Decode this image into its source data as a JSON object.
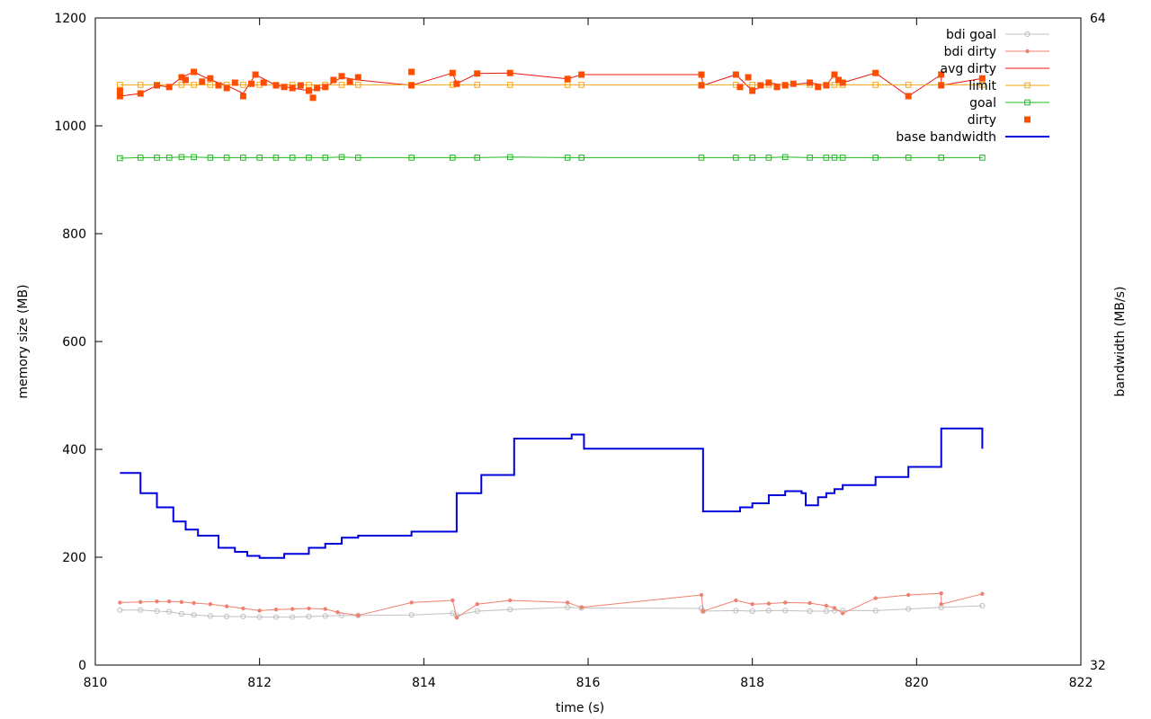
{
  "chart_data": {
    "type": "line",
    "title": "",
    "xlabel": "time (s)",
    "ylabel": "memory size (MB)",
    "y2label": "bandwidth (MB/s)",
    "xlim": [
      810,
      822
    ],
    "ylim": [
      0,
      1200
    ],
    "y2lim": [
      32,
      64
    ],
    "xticks": [
      "810",
      "812",
      "814",
      "816",
      "818",
      "820",
      "822"
    ],
    "yticks": [
      "0",
      "200",
      "400",
      "600",
      "800",
      "1000",
      "1200"
    ],
    "y2ticks": [
      "32",
      "64"
    ],
    "grid": false,
    "legend_position": "top-right",
    "series": [
      {
        "name": "bdi goal",
        "color": "#c0c0c0",
        "axis": "y",
        "style": "line-circle",
        "points": [
          [
            810.3,
            102
          ],
          [
            810.55,
            102
          ],
          [
            810.75,
            100
          ],
          [
            810.9,
            99
          ],
          [
            811.05,
            95
          ],
          [
            811.2,
            93
          ],
          [
            811.4,
            91
          ],
          [
            811.6,
            90
          ],
          [
            811.8,
            90
          ],
          [
            812.0,
            89
          ],
          [
            812.2,
            89
          ],
          [
            812.4,
            89
          ],
          [
            812.6,
            90
          ],
          [
            812.8,
            91
          ],
          [
            813.0,
            92
          ],
          [
            813.2,
            92
          ],
          [
            813.85,
            93
          ],
          [
            814.35,
            96
          ],
          [
            814.4,
            92
          ],
          [
            814.65,
            100
          ],
          [
            815.05,
            103
          ],
          [
            815.75,
            107
          ],
          [
            815.92,
            106
          ],
          [
            817.38,
            105
          ],
          [
            817.4,
            100
          ],
          [
            817.8,
            101
          ],
          [
            818.0,
            100
          ],
          [
            818.2,
            101
          ],
          [
            818.4,
            101
          ],
          [
            818.7,
            100
          ],
          [
            818.9,
            100
          ],
          [
            819.0,
            101
          ],
          [
            819.1,
            101
          ],
          [
            819.5,
            101
          ],
          [
            819.9,
            104
          ],
          [
            820.3,
            107
          ],
          [
            820.8,
            110
          ]
        ]
      },
      {
        "name": "bdi dirty",
        "color": "#f08070",
        "axis": "y",
        "style": "line-dot",
        "points": [
          [
            810.3,
            116
          ],
          [
            810.55,
            117
          ],
          [
            810.75,
            118
          ],
          [
            810.9,
            118
          ],
          [
            811.05,
            117
          ],
          [
            811.2,
            115
          ],
          [
            811.4,
            113
          ],
          [
            811.6,
            109
          ],
          [
            811.8,
            105
          ],
          [
            812.0,
            101
          ],
          [
            812.2,
            103
          ],
          [
            812.4,
            104
          ],
          [
            812.6,
            105
          ],
          [
            812.8,
            104
          ],
          [
            812.95,
            98
          ],
          [
            813.2,
            92
          ],
          [
            813.85,
            116
          ],
          [
            814.35,
            120
          ],
          [
            814.4,
            88
          ],
          [
            814.65,
            113
          ],
          [
            815.05,
            120
          ],
          [
            815.75,
            116
          ],
          [
            815.92,
            107
          ],
          [
            817.38,
            130
          ],
          [
            817.4,
            100
          ],
          [
            817.8,
            120
          ],
          [
            818.0,
            113
          ],
          [
            818.2,
            114
          ],
          [
            818.4,
            116
          ],
          [
            818.7,
            115
          ],
          [
            818.9,
            110
          ],
          [
            819.0,
            106
          ],
          [
            819.1,
            96
          ],
          [
            819.5,
            124
          ],
          [
            819.9,
            130
          ],
          [
            820.3,
            133
          ],
          [
            820.3,
            113
          ],
          [
            820.8,
            132
          ]
        ]
      },
      {
        "name": "avg dirty",
        "color": "#e8150e",
        "axis": "y",
        "style": "line",
        "points": [
          [
            810.3,
            1055
          ],
          [
            810.55,
            1060
          ],
          [
            810.75,
            1075
          ],
          [
            810.9,
            1072
          ],
          [
            811.05,
            1090
          ],
          [
            811.2,
            1100
          ],
          [
            811.4,
            1085
          ],
          [
            811.6,
            1075
          ],
          [
            811.8,
            1060
          ],
          [
            811.95,
            1095
          ],
          [
            812.2,
            1075
          ],
          [
            812.4,
            1070
          ],
          [
            812.6,
            1065
          ],
          [
            812.8,
            1072
          ],
          [
            813.0,
            1090
          ],
          [
            813.2,
            1085
          ],
          [
            813.85,
            1075
          ],
          [
            814.35,
            1098
          ],
          [
            814.4,
            1078
          ],
          [
            814.65,
            1097
          ],
          [
            815.05,
            1098
          ],
          [
            815.75,
            1087
          ],
          [
            815.92,
            1095
          ],
          [
            817.38,
            1095
          ],
          [
            817.4,
            1075
          ],
          [
            817.8,
            1095
          ],
          [
            818.0,
            1065
          ],
          [
            818.2,
            1080
          ],
          [
            818.4,
            1075
          ],
          [
            818.7,
            1080
          ],
          [
            818.9,
            1075
          ],
          [
            819.0,
            1095
          ],
          [
            819.1,
            1080
          ],
          [
            819.5,
            1098
          ],
          [
            819.9,
            1055
          ],
          [
            820.3,
            1095
          ],
          [
            820.3,
            1075
          ],
          [
            820.8,
            1088
          ]
        ]
      },
      {
        "name": "limit",
        "color": "#f5a612",
        "axis": "y",
        "style": "line-square",
        "points": [
          [
            810.3,
            1076
          ],
          [
            810.55,
            1076
          ],
          [
            810.75,
            1076
          ],
          [
            811.05,
            1076
          ],
          [
            811.2,
            1076
          ],
          [
            811.4,
            1076
          ],
          [
            811.6,
            1076
          ],
          [
            811.8,
            1076
          ],
          [
            812.0,
            1076
          ],
          [
            812.2,
            1076
          ],
          [
            812.4,
            1076
          ],
          [
            812.6,
            1076
          ],
          [
            812.8,
            1076
          ],
          [
            813.0,
            1076
          ],
          [
            813.2,
            1076
          ],
          [
            813.85,
            1076
          ],
          [
            814.35,
            1076
          ],
          [
            814.65,
            1076
          ],
          [
            815.05,
            1076
          ],
          [
            815.75,
            1076
          ],
          [
            815.92,
            1076
          ],
          [
            817.38,
            1076
          ],
          [
            817.8,
            1076
          ],
          [
            818.0,
            1076
          ],
          [
            818.2,
            1076
          ],
          [
            818.4,
            1076
          ],
          [
            818.7,
            1076
          ],
          [
            818.9,
            1076
          ],
          [
            819.0,
            1076
          ],
          [
            819.1,
            1076
          ],
          [
            819.5,
            1076
          ],
          [
            819.9,
            1076
          ],
          [
            820.3,
            1076
          ],
          [
            820.8,
            1076
          ]
        ]
      },
      {
        "name": "goal",
        "color": "#20b820",
        "axis": "y",
        "style": "line-square",
        "points": [
          [
            810.3,
            940
          ],
          [
            810.55,
            941
          ],
          [
            810.75,
            941
          ],
          [
            810.9,
            941
          ],
          [
            811.05,
            942
          ],
          [
            811.2,
            942
          ],
          [
            811.4,
            941
          ],
          [
            811.6,
            941
          ],
          [
            811.8,
            941
          ],
          [
            812.0,
            941
          ],
          [
            812.2,
            941
          ],
          [
            812.4,
            941
          ],
          [
            812.6,
            941
          ],
          [
            812.8,
            941
          ],
          [
            813.0,
            942
          ],
          [
            813.2,
            941
          ],
          [
            813.85,
            941
          ],
          [
            814.35,
            941
          ],
          [
            814.65,
            941
          ],
          [
            815.05,
            942
          ],
          [
            815.75,
            941
          ],
          [
            815.92,
            941
          ],
          [
            817.38,
            941
          ],
          [
            817.8,
            941
          ],
          [
            818.0,
            941
          ],
          [
            818.2,
            941
          ],
          [
            818.4,
            942
          ],
          [
            818.7,
            941
          ],
          [
            818.9,
            941
          ],
          [
            819.0,
            941
          ],
          [
            819.1,
            941
          ],
          [
            819.5,
            941
          ],
          [
            819.9,
            941
          ],
          [
            820.3,
            941
          ],
          [
            820.8,
            941
          ]
        ]
      },
      {
        "name": "dirty",
        "color": "#ff4d00",
        "axis": "y",
        "style": "points-square",
        "points": [
          [
            810.3,
            1055
          ],
          [
            810.3,
            1065
          ],
          [
            810.55,
            1060
          ],
          [
            810.75,
            1075
          ],
          [
            810.9,
            1072
          ],
          [
            811.05,
            1090
          ],
          [
            811.1,
            1085
          ],
          [
            811.2,
            1100
          ],
          [
            811.3,
            1082
          ],
          [
            811.4,
            1088
          ],
          [
            811.5,
            1075
          ],
          [
            811.6,
            1070
          ],
          [
            811.7,
            1080
          ],
          [
            811.8,
            1055
          ],
          [
            811.9,
            1078
          ],
          [
            811.95,
            1095
          ],
          [
            812.05,
            1080
          ],
          [
            812.2,
            1075
          ],
          [
            812.3,
            1072
          ],
          [
            812.4,
            1070
          ],
          [
            812.5,
            1075
          ],
          [
            812.6,
            1065
          ],
          [
            812.65,
            1052
          ],
          [
            812.7,
            1070
          ],
          [
            812.8,
            1072
          ],
          [
            812.9,
            1085
          ],
          [
            813.0,
            1092
          ],
          [
            813.1,
            1082
          ],
          [
            813.2,
            1090
          ],
          [
            813.85,
            1100
          ],
          [
            813.85,
            1075
          ],
          [
            814.35,
            1098
          ],
          [
            814.4,
            1078
          ],
          [
            814.65,
            1097
          ],
          [
            815.05,
            1098
          ],
          [
            815.75,
            1087
          ],
          [
            815.92,
            1095
          ],
          [
            817.38,
            1095
          ],
          [
            817.38,
            1075
          ],
          [
            817.8,
            1095
          ],
          [
            817.85,
            1072
          ],
          [
            817.95,
            1090
          ],
          [
            818.0,
            1065
          ],
          [
            818.1,
            1075
          ],
          [
            818.2,
            1080
          ],
          [
            818.3,
            1072
          ],
          [
            818.4,
            1075
          ],
          [
            818.5,
            1078
          ],
          [
            818.7,
            1080
          ],
          [
            818.8,
            1072
          ],
          [
            818.9,
            1075
          ],
          [
            819.0,
            1095
          ],
          [
            819.05,
            1085
          ],
          [
            819.1,
            1080
          ],
          [
            819.5,
            1098
          ],
          [
            819.9,
            1055
          ],
          [
            820.3,
            1095
          ],
          [
            820.3,
            1075
          ],
          [
            820.8,
            1088
          ]
        ]
      },
      {
        "name": "base bandwidth",
        "color": "#0000dd",
        "axis": "y2",
        "style": "step",
        "points": [
          [
            810.3,
            41.5
          ],
          [
            810.55,
            40.5
          ],
          [
            810.75,
            39.8
          ],
          [
            810.95,
            39.1
          ],
          [
            811.1,
            38.7
          ],
          [
            811.25,
            38.4
          ],
          [
            811.5,
            37.8
          ],
          [
            811.7,
            37.6
          ],
          [
            811.85,
            37.4
          ],
          [
            812.0,
            37.3
          ],
          [
            812.3,
            37.5
          ],
          [
            812.6,
            37.8
          ],
          [
            812.8,
            38.0
          ],
          [
            813.0,
            38.3
          ],
          [
            813.2,
            38.4
          ],
          [
            813.85,
            38.6
          ],
          [
            814.4,
            40.5
          ],
          [
            814.6,
            40.5
          ],
          [
            814.7,
            41.4
          ],
          [
            815.05,
            41.4
          ],
          [
            815.1,
            43.2
          ],
          [
            815.75,
            43.2
          ],
          [
            815.8,
            43.4
          ],
          [
            815.95,
            42.7
          ],
          [
            817.38,
            42.7
          ],
          [
            817.4,
            39.6
          ],
          [
            817.8,
            39.6
          ],
          [
            817.85,
            39.8
          ],
          [
            818.0,
            40.0
          ],
          [
            818.2,
            40.4
          ],
          [
            818.4,
            40.6
          ],
          [
            818.6,
            40.5
          ],
          [
            818.65,
            39.9
          ],
          [
            818.8,
            40.3
          ],
          [
            818.9,
            40.5
          ],
          [
            819.0,
            40.7
          ],
          [
            819.1,
            40.9
          ],
          [
            819.5,
            41.3
          ],
          [
            819.9,
            41.8
          ],
          [
            820.3,
            43.7
          ],
          [
            820.75,
            43.7
          ],
          [
            820.8,
            42.7
          ]
        ]
      }
    ]
  }
}
